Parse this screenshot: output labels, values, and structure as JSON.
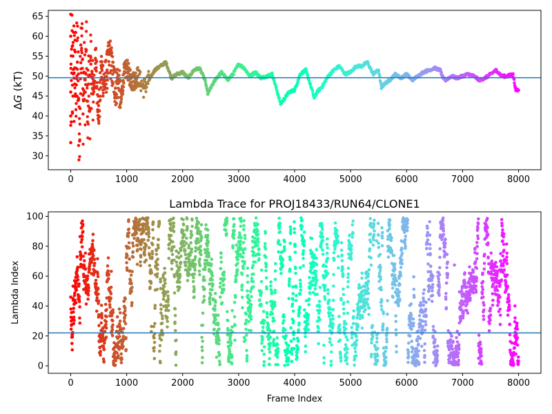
{
  "chart_data": [
    {
      "type": "scatter",
      "title": "",
      "ylabel_italic": "G",
      "ylabel_prefix": "Δ",
      "ylabel_suffix": " (kT)",
      "xlabel": "",
      "xlim": [
        -400,
        8400
      ],
      "ylim": [
        26.5,
        66.5
      ],
      "xticks": [
        0,
        1000,
        2000,
        3000,
        4000,
        5000,
        6000,
        7000,
        8000
      ],
      "yticks": [
        30,
        35,
        40,
        45,
        50,
        55,
        60,
        65
      ],
      "hline": 49.6,
      "hline_color": "#1f77b4",
      "colormap": "rainbow",
      "frames": 8000,
      "points": [
        [
          0,
          33.3
        ],
        [
          0,
          40.0
        ],
        [
          0,
          46.0
        ],
        [
          0,
          60.0
        ],
        [
          0,
          65.5
        ],
        [
          10,
          38.5
        ],
        [
          20,
          65.3
        ],
        [
          30,
          41.0
        ],
        [
          40,
          55.0
        ],
        [
          50,
          61.0
        ],
        [
          60,
          49.5
        ],
        [
          70,
          56.5
        ],
        [
          80,
          45.0
        ],
        [
          90,
          52.0
        ],
        [
          100,
          47.8
        ],
        [
          120,
          53.5
        ],
        [
          140,
          44.0
        ],
        [
          160,
          33.7
        ],
        [
          180,
          57.8
        ],
        [
          200,
          62.0
        ],
        [
          220,
          40.5
        ],
        [
          240,
          51.0
        ],
        [
          260,
          46.0
        ],
        [
          280,
          56.5
        ],
        [
          300,
          38.5
        ],
        [
          320,
          50.0
        ],
        [
          340,
          42.0
        ],
        [
          360,
          53.0
        ],
        [
          380,
          48.0
        ],
        [
          400,
          45.5
        ],
        [
          450,
          54.0
        ],
        [
          500,
          40.0
        ],
        [
          550,
          52.0
        ],
        [
          600,
          48.0
        ],
        [
          650,
          51.5
        ],
        [
          700,
          55.5
        ],
        [
          750,
          50.5
        ],
        [
          800,
          47.0
        ],
        [
          850,
          49.0
        ],
        [
          900,
          43.5
        ],
        [
          950,
          50.5
        ],
        [
          1000,
          52.0
        ],
        [
          1100,
          48.5
        ],
        [
          1200,
          50.0
        ],
        [
          1300,
          47.0
        ],
        [
          1400,
          49.0
        ],
        [
          1500,
          51.5
        ],
        [
          1600,
          52.5
        ],
        [
          1700,
          53.5
        ],
        [
          1800,
          49.5
        ],
        [
          1900,
          50.5
        ],
        [
          2000,
          51.0
        ],
        [
          2100,
          49.5
        ],
        [
          2200,
          51.5
        ],
        [
          2300,
          52.0
        ],
        [
          2400,
          49.0
        ],
        [
          2450,
          45.5
        ],
        [
          2500,
          47.0
        ],
        [
          2600,
          49.5
        ],
        [
          2700,
          51.0
        ],
        [
          2800,
          49.0
        ],
        [
          2900,
          50.5
        ],
        [
          3000,
          53.0
        ],
        [
          3100,
          52.0
        ],
        [
          3200,
          50.0
        ],
        [
          3300,
          51.0
        ],
        [
          3400,
          49.5
        ],
        [
          3500,
          50.0
        ],
        [
          3600,
          50.5
        ],
        [
          3700,
          45.5
        ],
        [
          3750,
          43.0
        ],
        [
          3800,
          44.0
        ],
        [
          3900,
          46.0
        ],
        [
          4000,
          46.5
        ],
        [
          4100,
          50.5
        ],
        [
          4200,
          51.5
        ],
        [
          4300,
          47.0
        ],
        [
          4350,
          44.5
        ],
        [
          4400,
          46.0
        ],
        [
          4500,
          47.5
        ],
        [
          4600,
          50.0
        ],
        [
          4700,
          51.5
        ],
        [
          4800,
          52.5
        ],
        [
          4900,
          50.5
        ],
        [
          5000,
          51.0
        ],
        [
          5100,
          52.5
        ],
        [
          5200,
          52.5
        ],
        [
          5300,
          53.5
        ],
        [
          5400,
          50.5
        ],
        [
          5500,
          51.5
        ],
        [
          5550,
          47.0
        ],
        [
          5600,
          48.0
        ],
        [
          5700,
          49.0
        ],
        [
          5800,
          50.5
        ],
        [
          5900,
          49.5
        ],
        [
          6000,
          50.5
        ],
        [
          6100,
          49.0
        ],
        [
          6200,
          50.0
        ],
        [
          6300,
          51.0
        ],
        [
          6400,
          51.5
        ],
        [
          6500,
          52.0
        ],
        [
          6600,
          51.5
        ],
        [
          6650,
          49.5
        ],
        [
          6700,
          49.0
        ],
        [
          6800,
          50.0
        ],
        [
          6900,
          49.5
        ],
        [
          7000,
          50.0
        ],
        [
          7100,
          50.5
        ],
        [
          7200,
          50.0
        ],
        [
          7300,
          49.0
        ],
        [
          7400,
          49.5
        ],
        [
          7500,
          50.5
        ],
        [
          7600,
          51.5
        ],
        [
          7700,
          50.0
        ],
        [
          7800,
          50.0
        ],
        [
          7900,
          50.5
        ],
        [
          7950,
          46.5
        ],
        [
          8000,
          46.5
        ]
      ]
    },
    {
      "type": "scatter",
      "title": "Lambda Trace for PROJ18433/RUN64/CLONE1",
      "ylabel": "Lambda Index",
      "xlabel": "Frame Index",
      "xlim": [
        -400,
        8400
      ],
      "ylim": [
        -5,
        103
      ],
      "xticks": [
        0,
        1000,
        2000,
        3000,
        4000,
        5000,
        6000,
        7000,
        8000
      ],
      "yticks": [
        0,
        20,
        40,
        60,
        80,
        100
      ],
      "hline": 22,
      "hline_color": "#1f77b4",
      "colormap": "rainbow",
      "frames": 8000,
      "lambda_max": 99,
      "point_count": 3200
    }
  ]
}
